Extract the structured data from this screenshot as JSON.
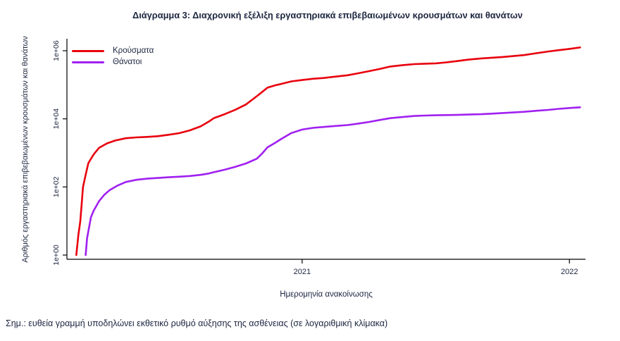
{
  "note": "Σημ.: ευθεία γραμμή υποδηλώνει εκθετικό ρυθμό αύξησης της ασθένειας (σε λογαριθμική κλίμακα)",
  "chart_data": {
    "type": "line",
    "title": "Διάγραμμα 3: Διαχρονική εξέλιξη εργαστηριακά επιβεβαιωμένων κρουσμάτων και θανάτων",
    "xlabel": "Ημερομηνία ανακοίνωσης",
    "ylabel": "Αριθμός εργαστηριακά επιβεβαιωμένων κρουσμάτων και θανάτων",
    "y_scale": "log10",
    "ylim_log": [
      0,
      6.2
    ],
    "xlim": [
      2020.12,
      2022.06
    ],
    "grid": false,
    "legend_position": "top-left-inside",
    "text_color": "#1c2540",
    "axis_color": "#000000",
    "x_ticks": [
      {
        "value": 2021,
        "label": "2021"
      },
      {
        "value": 2022,
        "label": "2022"
      }
    ],
    "y_ticks": [
      {
        "value": 1,
        "label": "1e+00"
      },
      {
        "value": 100,
        "label": "1e+02"
      },
      {
        "value": 10000,
        "label": "1e+04"
      },
      {
        "value": 1000000,
        "label": "1e+06"
      }
    ],
    "series": [
      {
        "name": "Κρούσματα",
        "color": "#e8000d",
        "points": [
          [
            2020.155,
            1
          ],
          [
            2020.163,
            4
          ],
          [
            2020.17,
            10
          ],
          [
            2020.175,
            31
          ],
          [
            2020.18,
            99
          ],
          [
            2020.19,
            228
          ],
          [
            2020.2,
            500
          ],
          [
            2020.22,
            900
          ],
          [
            2020.24,
            1400
          ],
          [
            2020.27,
            1900
          ],
          [
            2020.3,
            2300
          ],
          [
            2020.34,
            2700
          ],
          [
            2020.38,
            2850
          ],
          [
            2020.42,
            2950
          ],
          [
            2020.46,
            3100
          ],
          [
            2020.5,
            3400
          ],
          [
            2020.54,
            3800
          ],
          [
            2020.58,
            4600
          ],
          [
            2020.62,
            6000
          ],
          [
            2020.65,
            8200
          ],
          [
            2020.67,
            10500
          ],
          [
            2020.71,
            13700
          ],
          [
            2020.75,
            18500
          ],
          [
            2020.79,
            26500
          ],
          [
            2020.83,
            46000
          ],
          [
            2020.85,
            61000
          ],
          [
            2020.87,
            82000
          ],
          [
            2020.9,
            97000
          ],
          [
            2020.92,
            105000
          ],
          [
            2020.96,
            126000
          ],
          [
            2021.0,
            138000
          ],
          [
            2021.04,
            150000
          ],
          [
            2021.08,
            158000
          ],
          [
            2021.12,
            172000
          ],
          [
            2021.17,
            191000
          ],
          [
            2021.21,
            218000
          ],
          [
            2021.25,
            251000
          ],
          [
            2021.29,
            291000
          ],
          [
            2021.33,
            344000
          ],
          [
            2021.38,
            380000
          ],
          [
            2021.42,
            404000
          ],
          [
            2021.46,
            416000
          ],
          [
            2021.5,
            427000
          ],
          [
            2021.54,
            455000
          ],
          [
            2021.58,
            496000
          ],
          [
            2021.62,
            545000
          ],
          [
            2021.67,
            594000
          ],
          [
            2021.71,
            625000
          ],
          [
            2021.75,
            655000
          ],
          [
            2021.79,
            696000
          ],
          [
            2021.83,
            746000
          ],
          [
            2021.87,
            830000
          ],
          [
            2021.92,
            950000
          ],
          [
            2021.96,
            1040000
          ],
          [
            2022.0,
            1130000
          ],
          [
            2022.04,
            1250000
          ]
        ]
      },
      {
        "name": "Θάνατοι",
        "color": "#a020f0",
        "points": [
          [
            2020.19,
            1
          ],
          [
            2020.195,
            3
          ],
          [
            2020.2,
            5
          ],
          [
            2020.21,
            13
          ],
          [
            2020.22,
            20
          ],
          [
            2020.24,
            38
          ],
          [
            2020.26,
            59
          ],
          [
            2020.28,
            81
          ],
          [
            2020.31,
            110
          ],
          [
            2020.34,
            140
          ],
          [
            2020.38,
            162
          ],
          [
            2020.42,
            175
          ],
          [
            2020.46,
            183
          ],
          [
            2020.5,
            192
          ],
          [
            2020.54,
            200
          ],
          [
            2020.58,
            210
          ],
          [
            2020.62,
            226
          ],
          [
            2020.65,
            248
          ],
          [
            2020.67,
            271
          ],
          [
            2020.71,
            320
          ],
          [
            2020.75,
            391
          ],
          [
            2020.79,
            490
          ],
          [
            2020.83,
            673
          ],
          [
            2020.85,
            950
          ],
          [
            2020.87,
            1450
          ],
          [
            2020.9,
            2000
          ],
          [
            2020.92,
            2520
          ],
          [
            2020.96,
            3840
          ],
          [
            2021.0,
            4840
          ],
          [
            2021.04,
            5420
          ],
          [
            2021.08,
            5770
          ],
          [
            2021.12,
            6150
          ],
          [
            2021.17,
            6560
          ],
          [
            2021.21,
            7250
          ],
          [
            2021.25,
            8100
          ],
          [
            2021.29,
            9250
          ],
          [
            2021.33,
            10450
          ],
          [
            2021.38,
            11400
          ],
          [
            2021.42,
            12120
          ],
          [
            2021.46,
            12500
          ],
          [
            2021.5,
            12750
          ],
          [
            2021.54,
            12900
          ],
          [
            2021.58,
            13050
          ],
          [
            2021.62,
            13350
          ],
          [
            2021.67,
            13700
          ],
          [
            2021.71,
            14200
          ],
          [
            2021.75,
            14800
          ],
          [
            2021.79,
            15400
          ],
          [
            2021.83,
            16050
          ],
          [
            2021.87,
            17100
          ],
          [
            2021.92,
            18300
          ],
          [
            2021.96,
            19600
          ],
          [
            2022.0,
            20800
          ],
          [
            2022.04,
            21800
          ]
        ]
      }
    ]
  }
}
